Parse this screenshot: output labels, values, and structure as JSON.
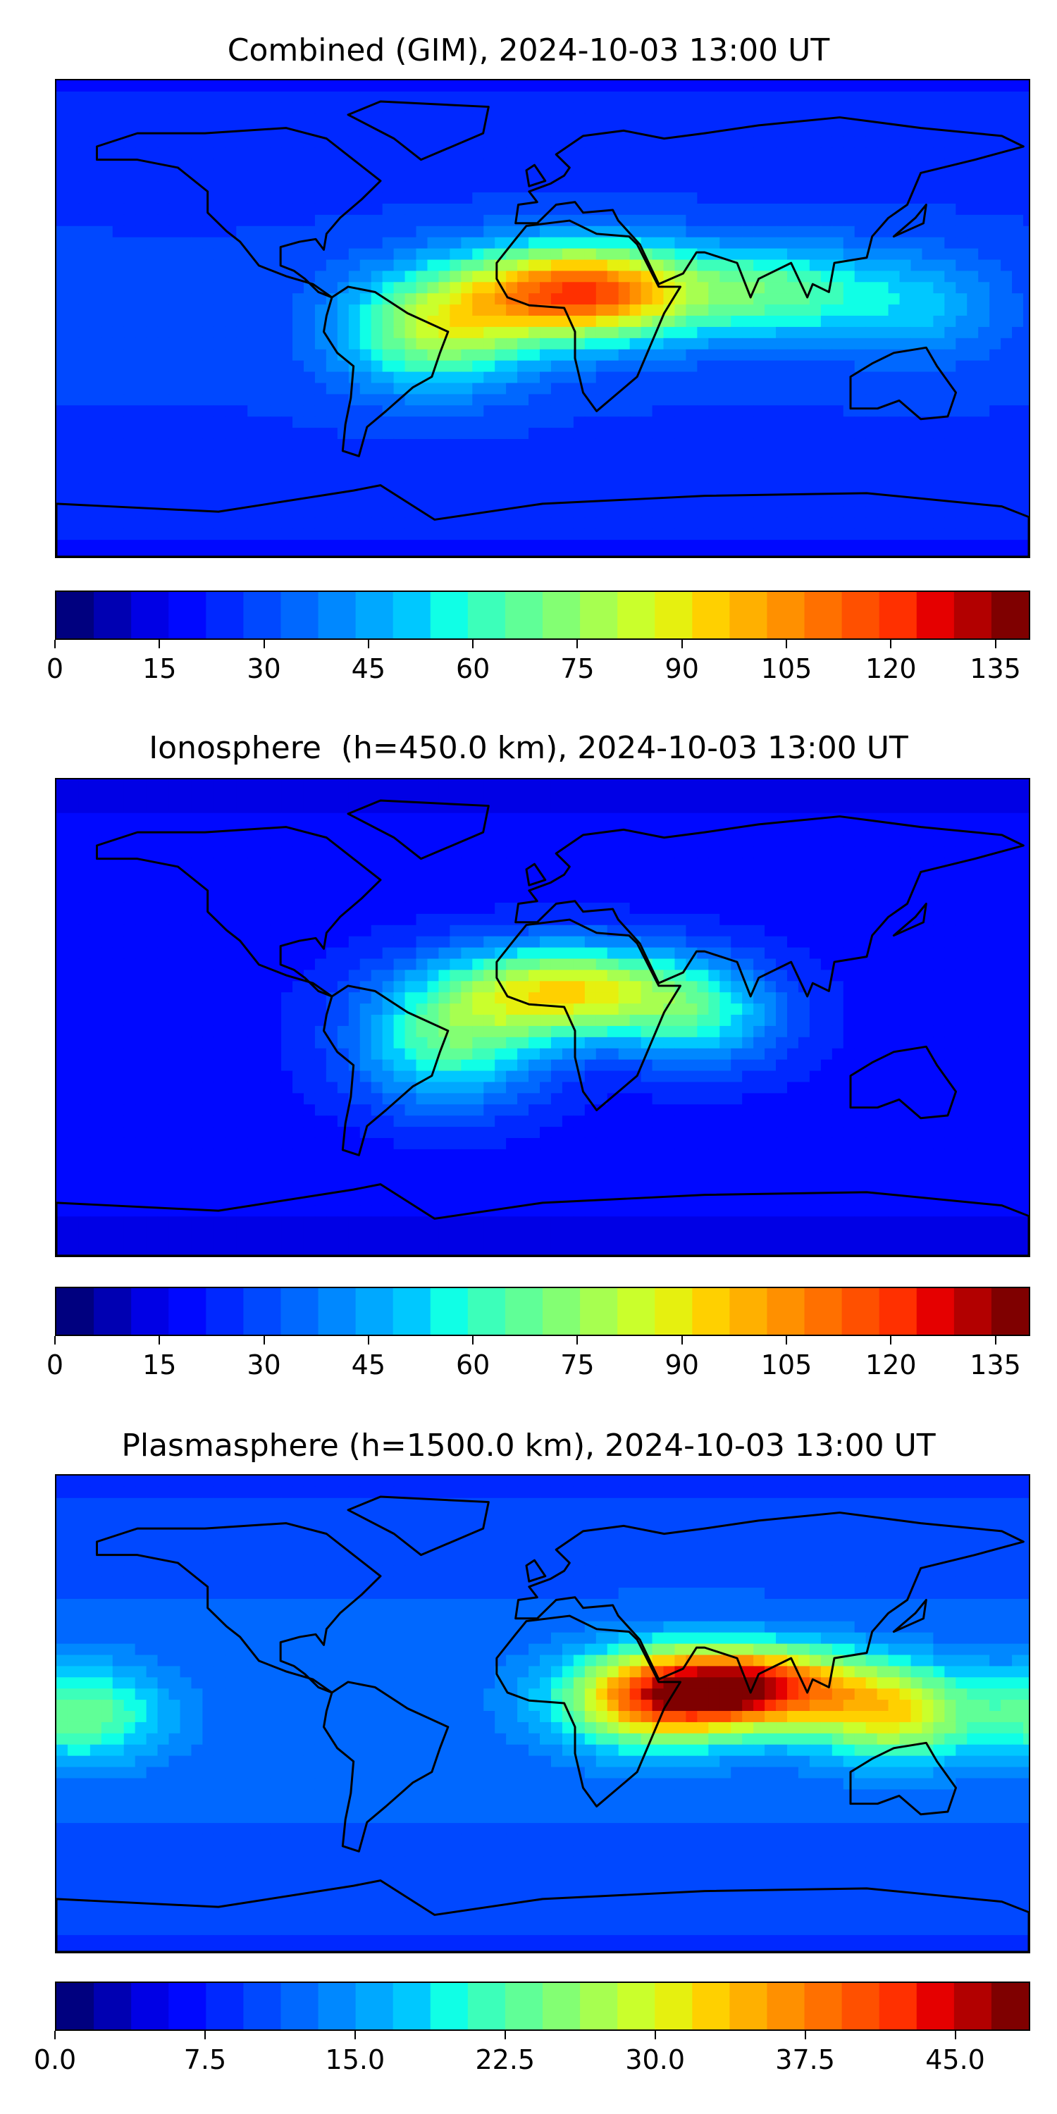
{
  "jet_colors": [
    "#00007f",
    "#0000b2",
    "#0000e5",
    "#0008ff",
    "#0028ff",
    "#0048ff",
    "#0068ff",
    "#0088ff",
    "#00a8ff",
    "#00c8ff",
    "#10ffe6",
    "#3cffba",
    "#60ff97",
    "#83ff73",
    "#a7ff50",
    "#caff2c",
    "#e6f00f",
    "#ffd000",
    "#ffb000",
    "#ff9000",
    "#ff7000",
    "#ff5000",
    "#ff3000",
    "#e50000",
    "#b20000",
    "#7f0000"
  ],
  "panels": [
    {
      "id": "combined",
      "title": "Combined (GIM), 2024-10-03 13:00 UT",
      "map": {
        "base_value": 28,
        "hotspots": [
          {
            "lon": 15,
            "lat": 10,
            "value": 118,
            "width_lon": 45,
            "width_lat": 18
          },
          {
            "lon": -40,
            "lat": -5,
            "value": 75,
            "width_lon": 35,
            "width_lat": 22
          },
          {
            "lon": 90,
            "lat": 10,
            "value": 62,
            "width_lon": 35,
            "width_lat": 18
          },
          {
            "lon": 140,
            "lat": 5,
            "value": 48,
            "width_lon": 30,
            "width_lat": 20
          }
        ]
      },
      "colorbar": {
        "min": 0,
        "max": 140,
        "ticks": [
          "0",
          "15",
          "30",
          "45",
          "60",
          "75",
          "90",
          "105",
          "120",
          "135"
        ],
        "tick_values": [
          0,
          15,
          30,
          45,
          60,
          75,
          90,
          105,
          120,
          135
        ]
      }
    },
    {
      "id": "ionosphere",
      "title": "Ionosphere  (h=450.0 km), 2024-10-03 13:00 UT",
      "map": {
        "base_value": 20,
        "hotspots": [
          {
            "lon": 10,
            "lat": 10,
            "value": 88,
            "width_lon": 45,
            "width_lat": 18
          },
          {
            "lon": -35,
            "lat": -10,
            "value": 62,
            "width_lon": 35,
            "width_lat": 25
          },
          {
            "lon": 60,
            "lat": 0,
            "value": 50,
            "width_lon": 30,
            "width_lat": 20
          }
        ]
      },
      "colorbar": {
        "min": 0,
        "max": 140,
        "ticks": [
          "0",
          "15",
          "30",
          "45",
          "60",
          "75",
          "90",
          "105",
          "120",
          "135"
        ],
        "tick_values": [
          0,
          15,
          30,
          45,
          60,
          75,
          90,
          105,
          120,
          135
        ]
      }
    },
    {
      "id": "plasmasphere",
      "title": "Plasmasphere (h=1500.0 km), 2024-10-03 13:00 UT",
      "map": {
        "base_value": 12,
        "hotspots": [
          {
            "lon": 75,
            "lat": 10,
            "value": 44,
            "width_lon": 40,
            "width_lat": 15
          },
          {
            "lon": 40,
            "lat": 5,
            "value": 32,
            "width_lon": 35,
            "width_lat": 18
          },
          {
            "lon": -170,
            "lat": 0,
            "value": 24,
            "width_lon": 30,
            "width_lat": 18
          },
          {
            "lon": 130,
            "lat": 0,
            "value": 30,
            "width_lon": 30,
            "width_lat": 18
          }
        ]
      },
      "colorbar": {
        "min": 0,
        "max": 48.75,
        "ticks": [
          "0.0",
          "7.5",
          "15.0",
          "22.5",
          "30.0",
          "37.5",
          "45.0"
        ],
        "tick_values": [
          0,
          7.5,
          15,
          22.5,
          30,
          37.5,
          45
        ]
      }
    }
  ],
  "coastline_color": "#000000"
}
